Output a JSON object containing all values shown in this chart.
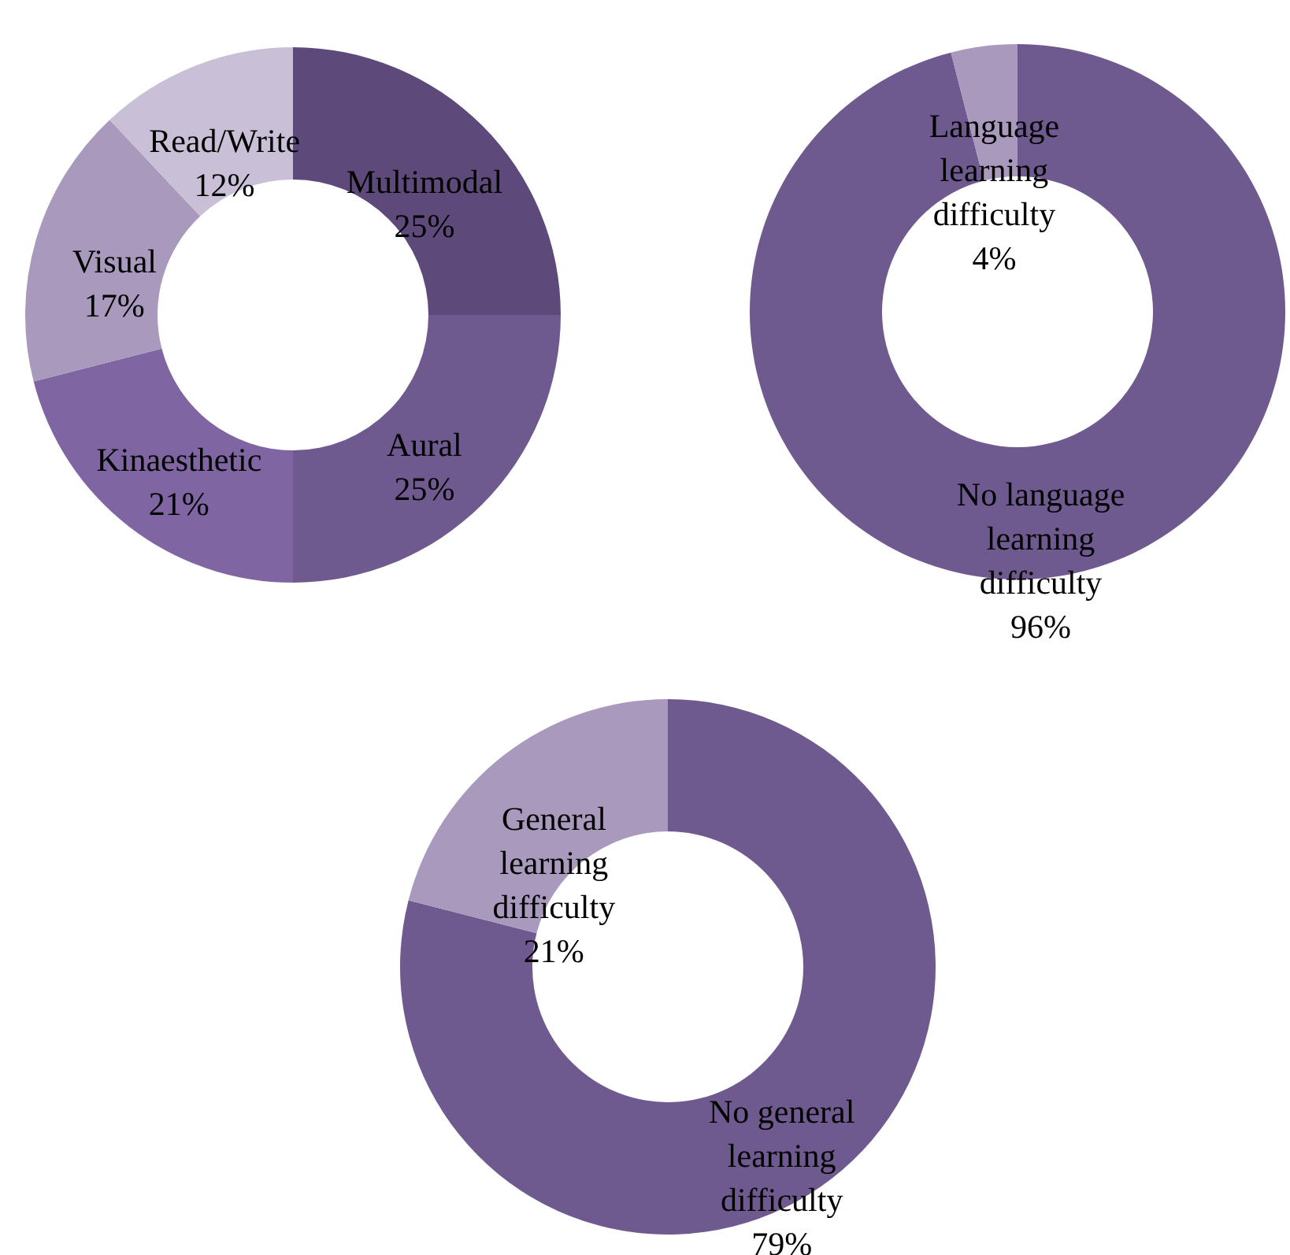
{
  "chart_data": [
    {
      "type": "donut",
      "categories": [
        "Multimodal",
        "Aural",
        "Kinaesthetic",
        "Visual",
        "Read/Write"
      ],
      "values": [
        25,
        25,
        21,
        17,
        12
      ],
      "colors": [
        "#5e4a7a",
        "#6f5a8f",
        "#7f66a3",
        "#a899bd",
        "#c9c0d8"
      ],
      "value_labels": [
        "25%",
        "25%",
        "21%",
        "17%",
        "12%"
      ]
    },
    {
      "type": "donut",
      "categories": [
        "No language learning difficulty",
        "Language learning difficulty"
      ],
      "values": [
        96,
        4
      ],
      "colors": [
        "#6f5a8f",
        "#a899bd"
      ],
      "value_labels": [
        "96%",
        "4%"
      ]
    },
    {
      "type": "donut",
      "categories": [
        "No general learning difficulty",
        "General learning difficulty"
      ],
      "values": [
        79,
        21
      ],
      "colors": [
        "#6f5a8f",
        "#a899bd"
      ],
      "value_labels": [
        "79%",
        "21%"
      ]
    }
  ]
}
